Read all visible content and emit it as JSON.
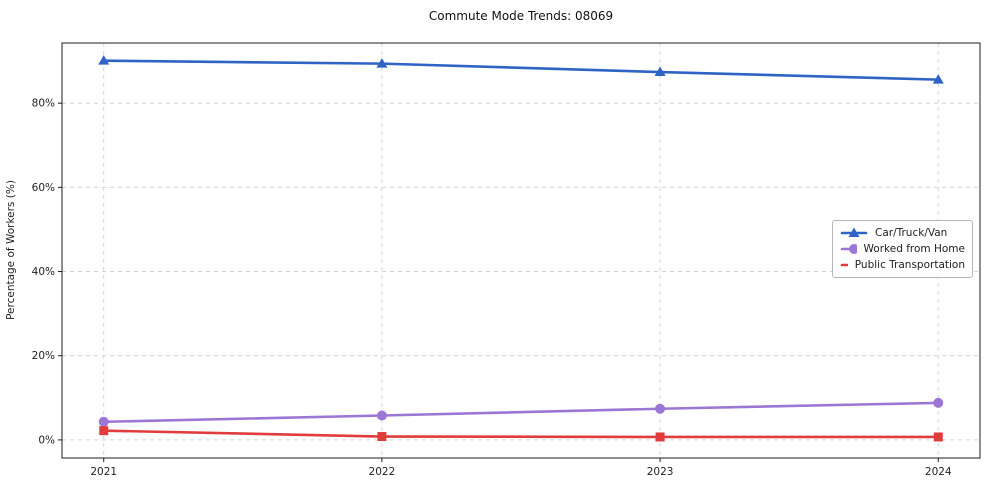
{
  "title": "Commute Mode Trends: 08069",
  "chart_data": {
    "type": "line",
    "title": "Commute Mode Trends: 08069",
    "xlabel": "",
    "ylabel": "Percentage of Workers (%)",
    "x": [
      2021,
      2022,
      2023,
      2024
    ],
    "xtick_labels": [
      "2021",
      "2022",
      "2023",
      "2024"
    ],
    "yticks": [
      0,
      20,
      40,
      60,
      80
    ],
    "ytick_labels": [
      "0%",
      "20%",
      "40%",
      "60%",
      "80%"
    ],
    "xlim": [
      2020.85,
      2024.15
    ],
    "ylim": [
      -4.3,
      94.3
    ],
    "grid": true,
    "grid_style": "dashed",
    "legend_position": "center-right",
    "series": [
      {
        "name": "Car/Truck/Van",
        "color": "#2f63c5",
        "marker": "triangle",
        "values": [
          90.1,
          89.4,
          87.4,
          85.6
        ]
      },
      {
        "name": "Worked from Home",
        "color": "#9c76d4",
        "marker": "circle",
        "values": [
          4.3,
          5.8,
          7.4,
          8.8
        ]
      },
      {
        "name": "Public Transportation",
        "color": "#e03c3c",
        "marker": "square",
        "values": [
          2.2,
          0.8,
          0.7,
          0.7
        ]
      }
    ]
  }
}
